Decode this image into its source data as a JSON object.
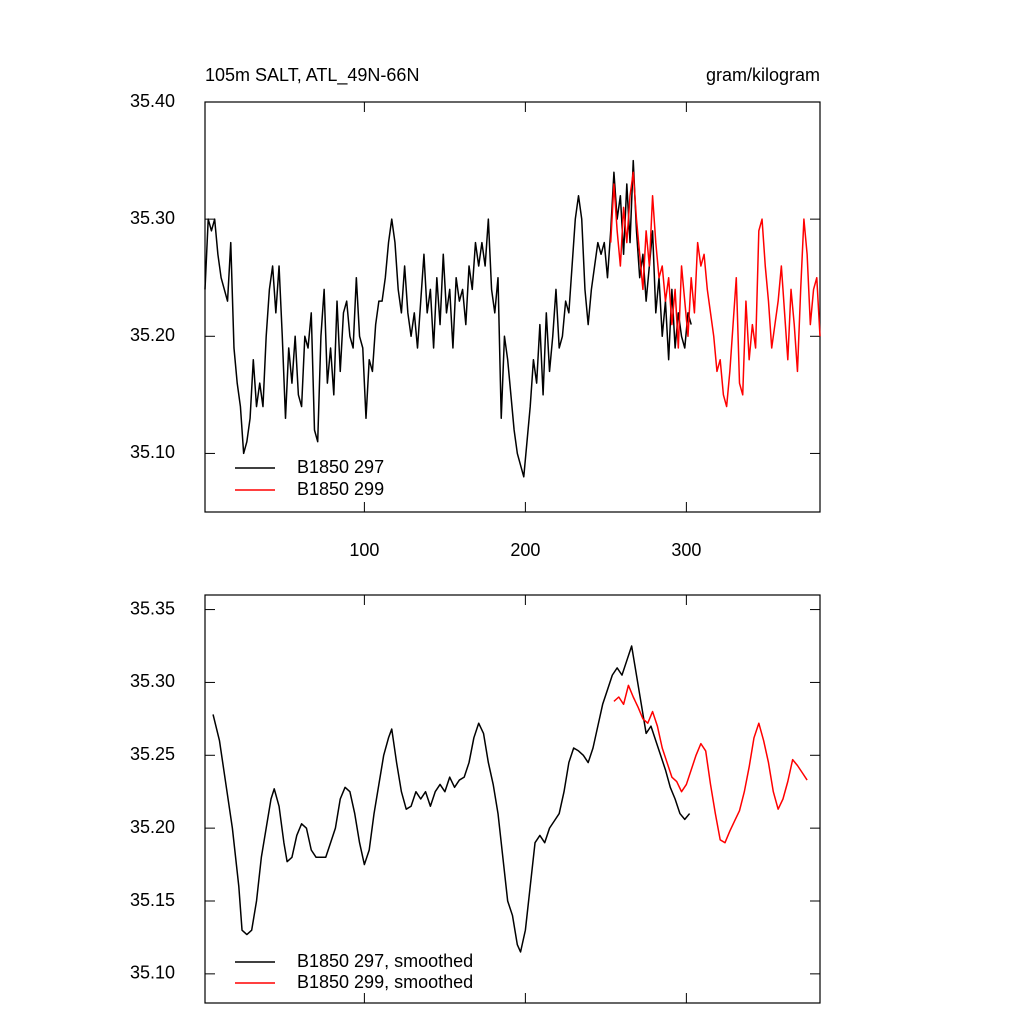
{
  "chart_data": [
    {
      "type": "line",
      "title": "105m SALT, ATL_49N-66N",
      "units_title": "gram/kilogram",
      "xlim": [
        1,
        383
      ],
      "xticks": [
        100,
        200,
        300
      ],
      "ylim": [
        35.05,
        35.4
      ],
      "yticks": [
        {
          "value": 35.1,
          "label": "35.10"
        },
        {
          "value": 35.2,
          "label": "35.20"
        },
        {
          "value": 35.3,
          "label": "35.30"
        },
        {
          "value": 35.4,
          "label": "35.40"
        }
      ],
      "legend": "lower left",
      "series": [
        {
          "name": "B1850 297",
          "color": "#000000",
          "x": [
            1,
            3,
            5,
            7,
            9,
            11,
            13,
            15,
            17,
            19,
            21,
            23,
            25,
            27,
            29,
            31,
            33,
            35,
            37,
            39,
            41,
            43,
            45,
            47,
            49,
            51,
            53,
            55,
            57,
            59,
            61,
            63,
            65,
            67,
            69,
            71,
            73,
            75,
            77,
            79,
            81,
            83,
            85,
            87,
            89,
            91,
            93,
            95,
            97,
            99,
            101,
            103,
            105,
            107,
            109,
            111,
            113,
            115,
            117,
            119,
            121,
            123,
            125,
            127,
            129,
            131,
            133,
            135,
            137,
            139,
            141,
            143,
            145,
            147,
            149,
            151,
            153,
            155,
            157,
            159,
            161,
            163,
            165,
            167,
            169,
            171,
            173,
            175,
            177,
            179,
            181,
            183,
            185,
            187,
            189,
            191,
            193,
            195,
            197,
            199,
            201,
            203,
            205,
            207,
            209,
            211,
            213,
            215,
            217,
            219,
            221,
            223,
            225,
            227,
            229,
            231,
            233,
            235,
            237,
            239,
            241,
            243,
            245,
            247,
            249,
            251,
            253,
            255,
            257,
            259,
            261,
            263,
            265,
            267,
            269,
            271,
            273,
            275,
            277,
            279,
            281,
            283,
            285,
            287,
            289,
            291,
            293,
            295,
            297,
            299,
            301,
            303
          ],
          "values": [
            35.24,
            35.3,
            35.29,
            35.3,
            35.27,
            35.25,
            35.24,
            35.23,
            35.28,
            35.19,
            35.16,
            35.14,
            35.1,
            35.11,
            35.13,
            35.18,
            35.14,
            35.16,
            35.14,
            35.2,
            35.24,
            35.26,
            35.22,
            35.26,
            35.2,
            35.13,
            35.19,
            35.16,
            35.2,
            35.15,
            35.14,
            35.2,
            35.19,
            35.22,
            35.12,
            35.11,
            35.2,
            35.24,
            35.16,
            35.19,
            35.15,
            35.23,
            35.17,
            35.22,
            35.23,
            35.2,
            35.19,
            35.25,
            35.2,
            35.19,
            35.13,
            35.18,
            35.17,
            35.21,
            35.23,
            35.23,
            35.25,
            35.28,
            35.3,
            35.28,
            35.24,
            35.22,
            35.26,
            35.22,
            35.2,
            35.22,
            35.19,
            35.23,
            35.27,
            35.22,
            35.24,
            35.19,
            35.25,
            35.21,
            35.27,
            35.22,
            35.24,
            35.19,
            35.25,
            35.23,
            35.24,
            35.21,
            35.26,
            35.24,
            35.28,
            35.26,
            35.28,
            35.26,
            35.3,
            35.24,
            35.22,
            35.25,
            35.13,
            35.2,
            35.18,
            35.15,
            35.12,
            35.1,
            35.09,
            35.08,
            35.11,
            35.14,
            35.18,
            35.16,
            35.21,
            35.15,
            35.22,
            35.17,
            35.2,
            35.24,
            35.19,
            35.2,
            35.23,
            35.22,
            35.26,
            35.3,
            35.32,
            35.3,
            35.24,
            35.21,
            35.24,
            35.26,
            35.28,
            35.27,
            35.28,
            35.25,
            35.29,
            35.34,
            35.3,
            35.32,
            35.27,
            35.33,
            35.28,
            35.35,
            35.29,
            35.25,
            35.27,
            35.23,
            35.26,
            35.29,
            35.22,
            35.25,
            35.2,
            35.23,
            35.18,
            35.24,
            35.19,
            35.22,
            35.2,
            35.19,
            35.22,
            35.21
          ]
        },
        {
          "name": "B1850 299",
          "color": "#ff0000",
          "x": [
            253,
            255,
            257,
            259,
            261,
            263,
            265,
            267,
            269,
            271,
            273,
            275,
            277,
            279,
            281,
            283,
            285,
            287,
            289,
            291,
            293,
            295,
            297,
            299,
            301,
            303,
            305,
            307,
            309,
            311,
            313,
            315,
            317,
            319,
            321,
            323,
            325,
            327,
            329,
            331,
            333,
            335,
            337,
            339,
            341,
            343,
            345,
            347,
            349,
            351,
            353,
            355,
            357,
            359,
            361,
            363,
            365,
            367,
            369,
            371,
            373,
            375,
            377,
            379,
            381,
            383
          ],
          "values": [
            35.28,
            35.33,
            35.29,
            35.26,
            35.31,
            35.28,
            35.32,
            35.34,
            35.3,
            35.27,
            35.24,
            35.29,
            35.26,
            35.32,
            35.28,
            35.25,
            35.26,
            35.23,
            35.25,
            35.21,
            35.24,
            35.19,
            35.26,
            35.23,
            35.2,
            35.25,
            35.22,
            35.28,
            35.26,
            35.27,
            35.24,
            35.22,
            35.2,
            35.17,
            35.18,
            35.15,
            35.14,
            35.17,
            35.21,
            35.25,
            35.16,
            35.15,
            35.23,
            35.18,
            35.21,
            35.19,
            35.29,
            35.3,
            35.26,
            35.23,
            35.19,
            35.21,
            35.23,
            35.26,
            35.22,
            35.18,
            35.24,
            35.21,
            35.17,
            35.24,
            35.3,
            35.27,
            35.21,
            35.24,
            35.25,
            35.2
          ]
        }
      ]
    },
    {
      "type": "line",
      "xlim": [
        1,
        383
      ],
      "ylim": [
        35.08,
        35.36
      ],
      "yticks": [
        {
          "value": 35.1,
          "label": "35.10"
        },
        35.15,
        {
          "value": 35.2,
          "label": "35.20"
        },
        35.25,
        {
          "value": 35.3,
          "label": "35.30"
        },
        35.35
      ],
      "legend": "lower left",
      "series": [
        {
          "name": "B1850 297, smoothed",
          "color": "#000000",
          "x": [
            6,
            10,
            14,
            18,
            22,
            24,
            27,
            30,
            33,
            36,
            39,
            42,
            44,
            47,
            50,
            52,
            55,
            58,
            61,
            64,
            67,
            70,
            73,
            76,
            79,
            82,
            85,
            88,
            91,
            94,
            97,
            100,
            103,
            106,
            109,
            112,
            115,
            117,
            120,
            123,
            126,
            129,
            132,
            135,
            138,
            141,
            144,
            147,
            150,
            153,
            156,
            159,
            162,
            165,
            168,
            171,
            174,
            177,
            180,
            183,
            186,
            189,
            192,
            195,
            197,
            200,
            203,
            206,
            209,
            212,
            215,
            218,
            221,
            224,
            227,
            230,
            233,
            236,
            239,
            242,
            245,
            248,
            251,
            254,
            257,
            260,
            263,
            266,
            269,
            272,
            275,
            278,
            281,
            284,
            287,
            290,
            293,
            296,
            299,
            302
          ],
          "values": [
            35.278,
            35.26,
            35.23,
            35.2,
            35.16,
            35.13,
            35.127,
            35.13,
            35.15,
            35.18,
            35.2,
            35.22,
            35.227,
            35.215,
            35.19,
            35.177,
            35.18,
            35.195,
            35.203,
            35.2,
            35.185,
            35.18,
            35.18,
            35.18,
            35.19,
            35.2,
            35.22,
            35.228,
            35.225,
            35.21,
            35.19,
            35.175,
            35.185,
            35.21,
            35.23,
            35.25,
            35.262,
            35.268,
            35.245,
            35.225,
            35.213,
            35.215,
            35.225,
            35.22,
            35.225,
            35.215,
            35.225,
            35.23,
            35.225,
            35.235,
            35.228,
            35.233,
            35.235,
            35.245,
            35.262,
            35.272,
            35.265,
            35.245,
            35.23,
            35.21,
            35.18,
            35.15,
            35.14,
            35.12,
            35.115,
            35.13,
            35.16,
            35.19,
            35.195,
            35.19,
            35.2,
            35.205,
            35.21,
            35.225,
            35.245,
            35.255,
            35.253,
            35.25,
            35.245,
            35.255,
            35.27,
            35.285,
            35.295,
            35.305,
            35.31,
            35.305,
            35.315,
            35.325,
            35.305,
            35.285,
            35.265,
            35.27,
            35.26,
            35.25,
            35.24,
            35.228,
            35.22,
            35.21,
            35.206,
            35.21
          ]
        },
        {
          "name": "B1850 299, smoothed",
          "color": "#ff0000",
          "x": [
            255,
            258,
            261,
            264,
            267,
            270,
            273,
            276,
            279,
            282,
            285,
            288,
            291,
            294,
            297,
            300,
            303,
            306,
            309,
            312,
            315,
            318,
            321,
            324,
            327,
            330,
            333,
            336,
            339,
            342,
            345,
            348,
            351,
            354,
            357,
            360,
            363,
            366,
            369,
            372,
            375
          ],
          "values": [
            35.287,
            35.29,
            35.285,
            35.298,
            35.29,
            35.283,
            35.275,
            35.272,
            35.28,
            35.27,
            35.255,
            35.245,
            35.235,
            35.232,
            35.225,
            35.23,
            35.24,
            35.25,
            35.258,
            35.253,
            35.23,
            35.21,
            35.192,
            35.19,
            35.198,
            35.205,
            35.212,
            35.225,
            35.242,
            35.262,
            35.272,
            35.26,
            35.245,
            35.225,
            35.213,
            35.22,
            35.232,
            35.247,
            35.243,
            35.238,
            35.233
          ]
        }
      ]
    }
  ]
}
